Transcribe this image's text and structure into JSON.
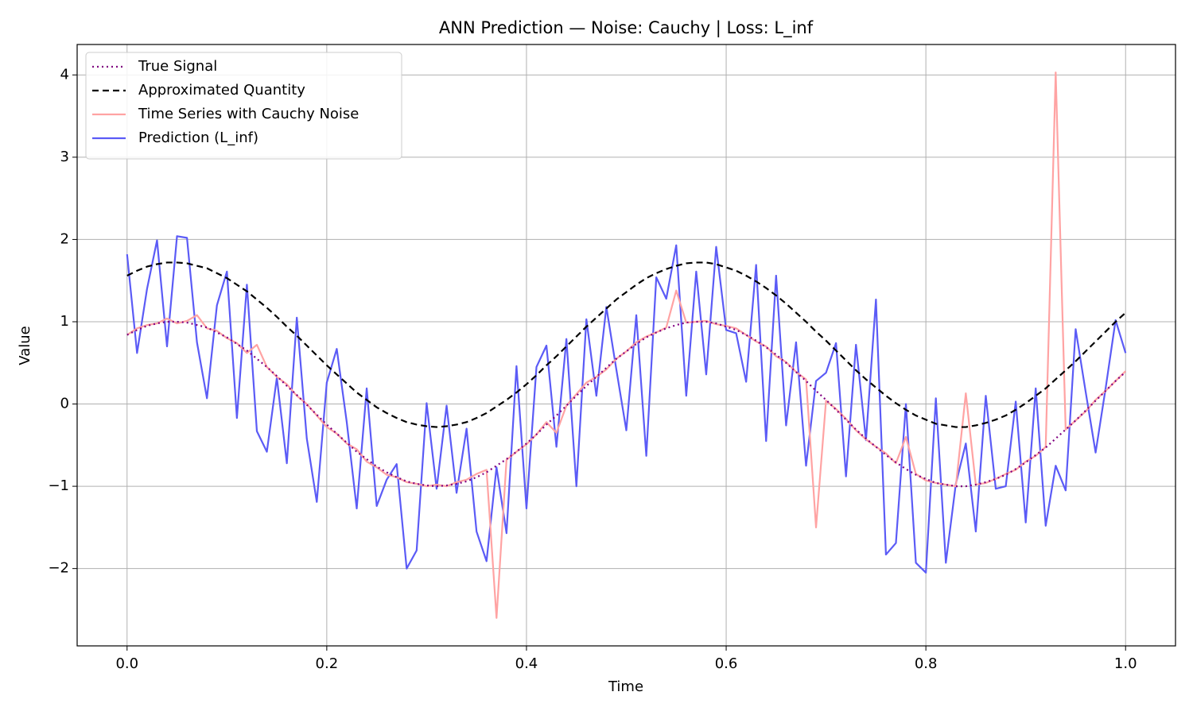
{
  "chart_data": {
    "type": "line",
    "title": "ANN Prediction — Noise: Cauchy | Loss: L_inf",
    "xlabel": "Time",
    "ylabel": "Value",
    "x": [
      0,
      0.01,
      0.02,
      0.03,
      0.04,
      0.05,
      0.06,
      0.07,
      0.08,
      0.09,
      0.1,
      0.11,
      0.12,
      0.13,
      0.14,
      0.15,
      0.16,
      0.17,
      0.18,
      0.19,
      0.2,
      0.21,
      0.22,
      0.23,
      0.24,
      0.25,
      0.26,
      0.27,
      0.28,
      0.29,
      0.3,
      0.31,
      0.32,
      0.33,
      0.34,
      0.35,
      0.36,
      0.37,
      0.38,
      0.39,
      0.4,
      0.41,
      0.42,
      0.43,
      0.44,
      0.45,
      0.46,
      0.47,
      0.48,
      0.49,
      0.5,
      0.51,
      0.52,
      0.53,
      0.54,
      0.55,
      0.56,
      0.57,
      0.58,
      0.59,
      0.6,
      0.61,
      0.62,
      0.63,
      0.64,
      0.65,
      0.66,
      0.67,
      0.68,
      0.69,
      0.7,
      0.71,
      0.72,
      0.73,
      0.74,
      0.75,
      0.76,
      0.77,
      0.78,
      0.79,
      0.8,
      0.81,
      0.82,
      0.83,
      0.84,
      0.85,
      0.86,
      0.87,
      0.88,
      0.89,
      0.9,
      0.91,
      0.92,
      0.93,
      0.94,
      0.95,
      0.96,
      0.97,
      0.98,
      0.99,
      1
    ],
    "series": [
      {
        "name": "True Signal",
        "color": "#800080",
        "dash": "dotted",
        "values": [
          0.84,
          0.9,
          0.95,
          0.98,
          1.0,
          1.0,
          0.99,
          0.96,
          0.93,
          0.87,
          0.81,
          0.73,
          0.65,
          0.55,
          0.45,
          0.34,
          0.22,
          0.11,
          -0.01,
          -0.13,
          -0.25,
          -0.36,
          -0.47,
          -0.58,
          -0.67,
          -0.76,
          -0.83,
          -0.89,
          -0.94,
          -0.97,
          -0.99,
          -1.0,
          -0.99,
          -0.97,
          -0.94,
          -0.89,
          -0.83,
          -0.75,
          -0.67,
          -0.58,
          -0.48,
          -0.37,
          -0.25,
          -0.14,
          -0.02,
          0.1,
          0.22,
          0.33,
          0.44,
          0.55,
          0.64,
          0.73,
          0.81,
          0.87,
          0.92,
          0.96,
          0.99,
          1.0,
          1.0,
          0.98,
          0.94,
          0.9,
          0.84,
          0.77,
          0.69,
          0.6,
          0.5,
          0.39,
          0.28,
          0.16,
          0.05,
          -0.07,
          -0.19,
          -0.31,
          -0.42,
          -0.52,
          -0.62,
          -0.71,
          -0.79,
          -0.86,
          -0.91,
          -0.96,
          -0.98,
          -1.0,
          -1.0,
          -0.98,
          -0.95,
          -0.91,
          -0.86,
          -0.79,
          -0.71,
          -0.62,
          -0.53,
          -0.42,
          -0.31,
          -0.2,
          -0.08,
          0.04,
          0.16,
          0.28,
          0.39
        ]
      },
      {
        "name": "Approximated Quantity",
        "color": "#000000",
        "dash": "dashed",
        "values": [
          1.56,
          1.62,
          1.67,
          1.7,
          1.72,
          1.72,
          1.71,
          1.68,
          1.65,
          1.59,
          1.53,
          1.45,
          1.37,
          1.27,
          1.17,
          1.06,
          0.94,
          0.83,
          0.71,
          0.59,
          0.47,
          0.36,
          0.25,
          0.14,
          0.05,
          -0.04,
          -0.11,
          -0.17,
          -0.22,
          -0.25,
          -0.27,
          -0.28,
          -0.27,
          -0.25,
          -0.22,
          -0.17,
          -0.11,
          -0.03,
          0.05,
          0.14,
          0.24,
          0.35,
          0.47,
          0.58,
          0.7,
          0.82,
          0.94,
          1.05,
          1.16,
          1.27,
          1.36,
          1.45,
          1.53,
          1.59,
          1.64,
          1.68,
          1.71,
          1.72,
          1.72,
          1.7,
          1.66,
          1.62,
          1.56,
          1.49,
          1.41,
          1.32,
          1.22,
          1.11,
          1.0,
          0.88,
          0.77,
          0.65,
          0.53,
          0.41,
          0.3,
          0.2,
          0.1,
          0.01,
          -0.07,
          -0.14,
          -0.19,
          -0.24,
          -0.26,
          -0.28,
          -0.28,
          -0.26,
          -0.23,
          -0.19,
          -0.14,
          -0.07,
          0.01,
          0.1,
          0.19,
          0.3,
          0.41,
          0.52,
          0.64,
          0.76,
          0.88,
          1.0,
          1.11
        ]
      },
      {
        "name": "Time Series with Cauchy Noise",
        "color": "#ffa3a3",
        "dash": "solid",
        "values": [
          0.84,
          0.92,
          0.96,
          0.98,
          1.04,
          0.98,
          1.01,
          1.08,
          0.92,
          0.89,
          0.8,
          0.74,
          0.62,
          0.72,
          0.45,
          0.33,
          0.24,
          0.1,
          0.0,
          -0.14,
          -0.28,
          -0.36,
          -0.48,
          -0.55,
          -0.7,
          -0.77,
          -0.86,
          -0.89,
          -0.95,
          -0.97,
          -1.0,
          -0.98,
          -1.0,
          -0.95,
          -0.92,
          -0.85,
          -0.8,
          -2.6,
          -0.68,
          -0.58,
          -0.49,
          -0.37,
          -0.22,
          -0.35,
          -0.02,
          0.12,
          0.26,
          0.33,
          0.42,
          0.55,
          0.64,
          0.75,
          0.82,
          0.87,
          0.93,
          1.38,
          0.99,
          1.0,
          1.01,
          0.97,
          0.95,
          0.92,
          0.84,
          0.76,
          0.7,
          0.58,
          0.51,
          0.39,
          0.3,
          -1.5,
          0.04,
          -0.06,
          -0.18,
          -0.32,
          -0.43,
          -0.52,
          -0.6,
          -0.72,
          -0.4,
          -0.85,
          -0.93,
          -0.96,
          -0.98,
          -1.0,
          0.13,
          -0.98,
          -0.96,
          -0.91,
          -0.85,
          -0.8,
          -0.7,
          -0.63,
          -0.52,
          4.03,
          -0.31,
          -0.2,
          -0.09,
          0.05,
          0.16,
          0.28,
          0.4
        ]
      },
      {
        "name": "Prediction (L_inf)",
        "color": "#5b5bf6",
        "dash": "solid",
        "values": [
          1.82,
          0.62,
          1.4,
          1.99,
          0.7,
          2.04,
          2.02,
          0.75,
          0.07,
          1.2,
          1.61,
          -0.17,
          1.45,
          -0.33,
          -0.58,
          0.32,
          -0.72,
          1.05,
          -0.42,
          -1.19,
          0.26,
          0.67,
          -0.22,
          -1.27,
          0.19,
          -1.24,
          -0.92,
          -0.73,
          -2.0,
          -1.78,
          0.01,
          -1.03,
          -0.02,
          -1.08,
          -0.3,
          -1.55,
          -1.91,
          -0.77,
          -1.57,
          0.46,
          -1.27,
          0.45,
          0.71,
          -0.52,
          0.79,
          -1.0,
          1.03,
          0.1,
          1.18,
          0.42,
          -0.32,
          1.08,
          -0.63,
          1.54,
          1.28,
          1.93,
          0.1,
          1.61,
          0.36,
          1.91,
          0.9,
          0.86,
          0.27,
          1.69,
          -0.45,
          1.56,
          -0.26,
          0.75,
          -0.75,
          0.28,
          0.38,
          0.74,
          -0.88,
          0.72,
          -0.44,
          1.27,
          -1.83,
          -1.69,
          0.0,
          -1.93,
          -2.05,
          0.07,
          -1.93,
          -0.97,
          -0.48,
          -1.55,
          0.1,
          -1.03,
          -1.0,
          0.03,
          -1.44,
          0.19,
          -1.48,
          -0.75,
          -1.05,
          0.91,
          0.15,
          -0.59,
          0.19,
          1.02,
          0.62
        ]
      }
    ],
    "xlim": [
      -0.05,
      1.05
    ],
    "xticks": [
      {
        "value": 0,
        "label": "0.0"
      },
      {
        "value": 0.2,
        "label": "0.2"
      },
      {
        "value": 0.4,
        "label": "0.4"
      },
      {
        "value": 0.6,
        "label": "0.6"
      },
      {
        "value": 0.8,
        "label": "0.8"
      },
      {
        "value": 1,
        "label": "1.0"
      }
    ],
    "ylim": [
      -2.94,
      4.37
    ],
    "yticks": [
      {
        "value": -2,
        "label": "−2"
      },
      {
        "value": -1,
        "label": "−1"
      },
      0,
      1,
      2,
      3,
      4
    ],
    "grid": true,
    "legend": "upper left"
  }
}
